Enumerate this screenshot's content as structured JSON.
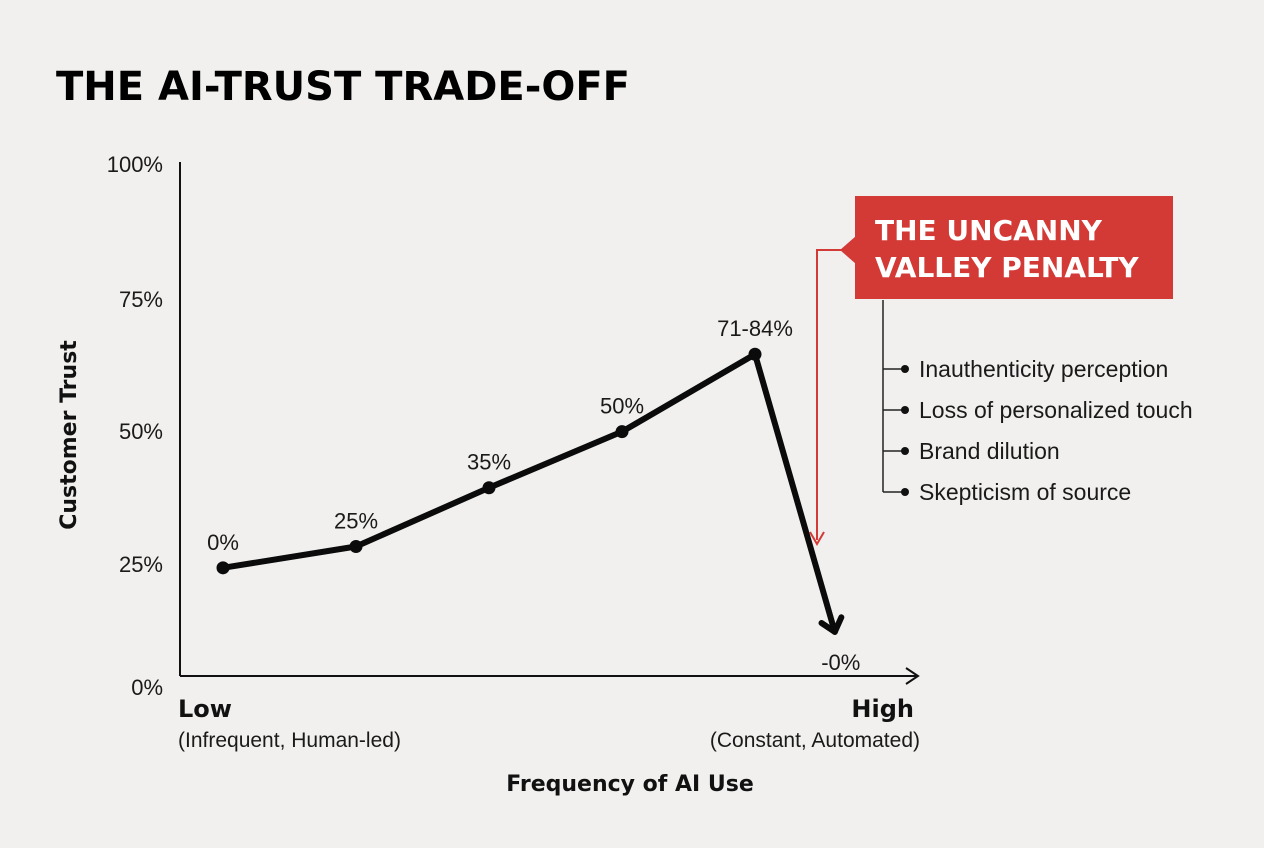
{
  "chart_data": {
    "type": "line",
    "title": "THE AI-TRUST TRADE-OFF",
    "ylabel": "Customer Trust",
    "xlabel": "Frequency of AI Use",
    "ylim": [
      0,
      100
    ],
    "yticks": [
      "100%",
      "75%",
      "50%",
      "25%",
      "0%"
    ],
    "x_low": {
      "label": "Low",
      "sublabel": "(Infrequent, Human-led)"
    },
    "x_high": {
      "label": "High",
      "sublabel": "(Constant, Automated)"
    },
    "x": [
      0,
      1,
      2,
      3,
      4
    ],
    "values": [
      24,
      28,
      39,
      49.5,
      64
    ],
    "point_labels": [
      "0%",
      "25%",
      "35%",
      "50%",
      "71-84%"
    ],
    "drop": {
      "x": 4.6,
      "value": 12,
      "label": "-0%"
    },
    "grid": false,
    "legend": "none"
  },
  "callout": {
    "title_line1": "THE UNCANNY",
    "title_line2": "VALLEY PENALTY",
    "color": "#d33a36",
    "bullets": [
      "Inauthenticity perception",
      "Loss of personalized touch",
      "Brand dilution",
      "Skepticism of source"
    ]
  }
}
